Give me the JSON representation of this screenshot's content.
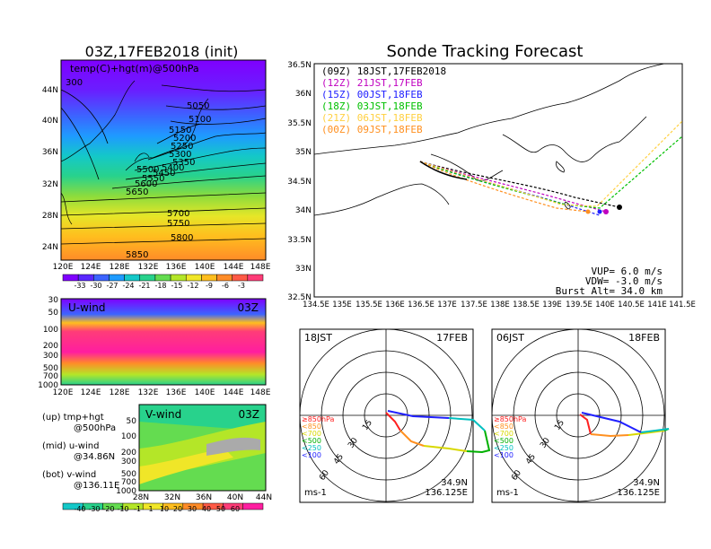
{
  "colors": {
    "temp_scale": [
      "#7f00ff",
      "#5a28ff",
      "#3c64ff",
      "#1e9bff",
      "#14c8c8",
      "#28d28c",
      "#64dc50",
      "#b4e628",
      "#f0e628",
      "#ffbe1e",
      "#ff8c28",
      "#ff5a46",
      "#ff3c78"
    ],
    "wind_scale": [
      "#14c8c8",
      "#28d28c",
      "#64dc50",
      "#b4e628",
      "#f0e628",
      "#ffbe1e",
      "#ff8c28",
      "#ff5a46",
      "#ff3c78",
      "#ff1ea0"
    ],
    "track_09z": "#000000",
    "track_12z": "#c000c0",
    "track_15z": "#2020ff",
    "track_18z": "#00c000",
    "track_21z": "#ffd040",
    "track_00z": "#ff9020",
    "hodo_850": "#ff2020",
    "hodo_700": "#ff9020",
    "hodo_500": "#d8d800",
    "hodo_250": "#00c0c0",
    "hodo_100": "#2020ff"
  },
  "left": {
    "title": "03Z,17FEB2018 (init)",
    "map_label": "temp(C)+hgt(m)@500hPa",
    "lat_labels": [
      "44N",
      "40N",
      "36N",
      "32N",
      "28N",
      "24N"
    ],
    "lon_labels": [
      "120E",
      "124E",
      "128E",
      "132E",
      "136E",
      "140E",
      "144E",
      "148E"
    ],
    "contour_labels": [
      "300",
      "5050",
      "5100",
      "5150",
      "5200",
      "5250",
      "5300",
      "5350",
      "5400",
      "5450",
      "5500",
      "5550",
      "5600",
      "5650",
      "5700",
      "5750",
      "5800",
      "5850"
    ],
    "temp_colorbar": [
      "-33",
      "-30",
      "-27",
      "-24",
      "-21",
      "-18",
      "-15",
      "-12",
      "-9",
      "-6",
      "-3"
    ],
    "uwind_label": "U-wind",
    "uwind_time": "03Z",
    "uwind_levels": [
      "30",
      "50",
      "100",
      "200",
      "300",
      "500",
      "700",
      "1000"
    ],
    "vwind_label": "V-wind",
    "vwind_time": "03Z",
    "vwind_levels": [
      "50",
      "100",
      "200",
      "300",
      "500",
      "700",
      "1000"
    ],
    "vwind_lat_labels": [
      "28N",
      "32N",
      "36N",
      "40N",
      "44N"
    ],
    "wind_colorbar": [
      "-40",
      "-30",
      "-20",
      "-10",
      "-1",
      "1",
      "10",
      "20",
      "30",
      "40",
      "50",
      "60"
    ],
    "legend_up_1": "(up) tmp+hgt",
    "legend_up_2": "@500hPa",
    "legend_mid_1": "(mid) u-wind",
    "legend_mid_2": "@34.86N",
    "legend_bot_1": "(bot) v-wind",
    "legend_bot_2": "@136.11E"
  },
  "right": {
    "title": "Sonde Tracking Forecast",
    "legend": [
      {
        "text": "(09Z)  18JST,17FEB2018",
        "color": "#000000"
      },
      {
        "text": "(12Z)  21JST,17FEB",
        "color": "#c000c0"
      },
      {
        "text": "(15Z)  00JST,18FEB",
        "color": "#2020ff"
      },
      {
        "text": "(18Z)  03JST,18FEB",
        "color": "#00c000"
      },
      {
        "text": "(21Z)  06JST,18FEB",
        "color": "#ffd040"
      },
      {
        "text": "(00Z)  09JST,18FEB",
        "color": "#ff9020"
      }
    ],
    "lat_labels": [
      "36.5N",
      "36N",
      "35.5N",
      "35N",
      "34.5N",
      "34N",
      "33.5N",
      "33N",
      "32.5N"
    ],
    "lon_labels": [
      "134.5E",
      "135E",
      "135.5E",
      "136E",
      "136.5E",
      "137E",
      "137.5E",
      "138E",
      "138.5E",
      "139E",
      "139.5E",
      "140E",
      "140.5E",
      "141E",
      "141.5E"
    ],
    "vup": "VUP=  6.0 m/s",
    "vdw": "VDW= -3.0 m/s",
    "burst": "Burst Alt= 34.0 km"
  },
  "hodographs": [
    {
      "time": "18JST",
      "date": "17FEB",
      "lat": "34.9N",
      "lon": "136.125E",
      "unit": "ms-1"
    },
    {
      "time": "06JST",
      "date": "18FEB",
      "lat": "34.9N",
      "lon": "136.125E",
      "unit": "ms-1"
    }
  ],
  "hodo_legend": [
    "≥850hPa",
    "<850",
    "<700",
    "<500",
    "<250",
    "<100"
  ],
  "hodo_rings": [
    "15",
    "30",
    "45",
    "60"
  ]
}
